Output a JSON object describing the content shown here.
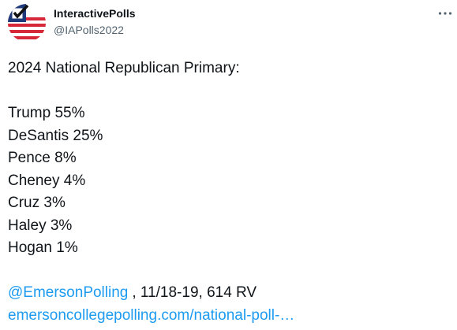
{
  "author": {
    "name": "InteractivePolls",
    "handle": "@IAPolls2022"
  },
  "tweet": {
    "heading": "2024 National Republican Primary:",
    "results": [
      "Trump 55%",
      "DeSantis 25%",
      "Pence 8%",
      "Cheney 4%",
      "Cruz 3%",
      "Haley 3%",
      "Hogan 1%"
    ],
    "mention": "@EmersonPolling",
    "source_info": ", 11/18-19, 614 RV",
    "link": "emersoncollegepolling.com/national-poll-…"
  }
}
